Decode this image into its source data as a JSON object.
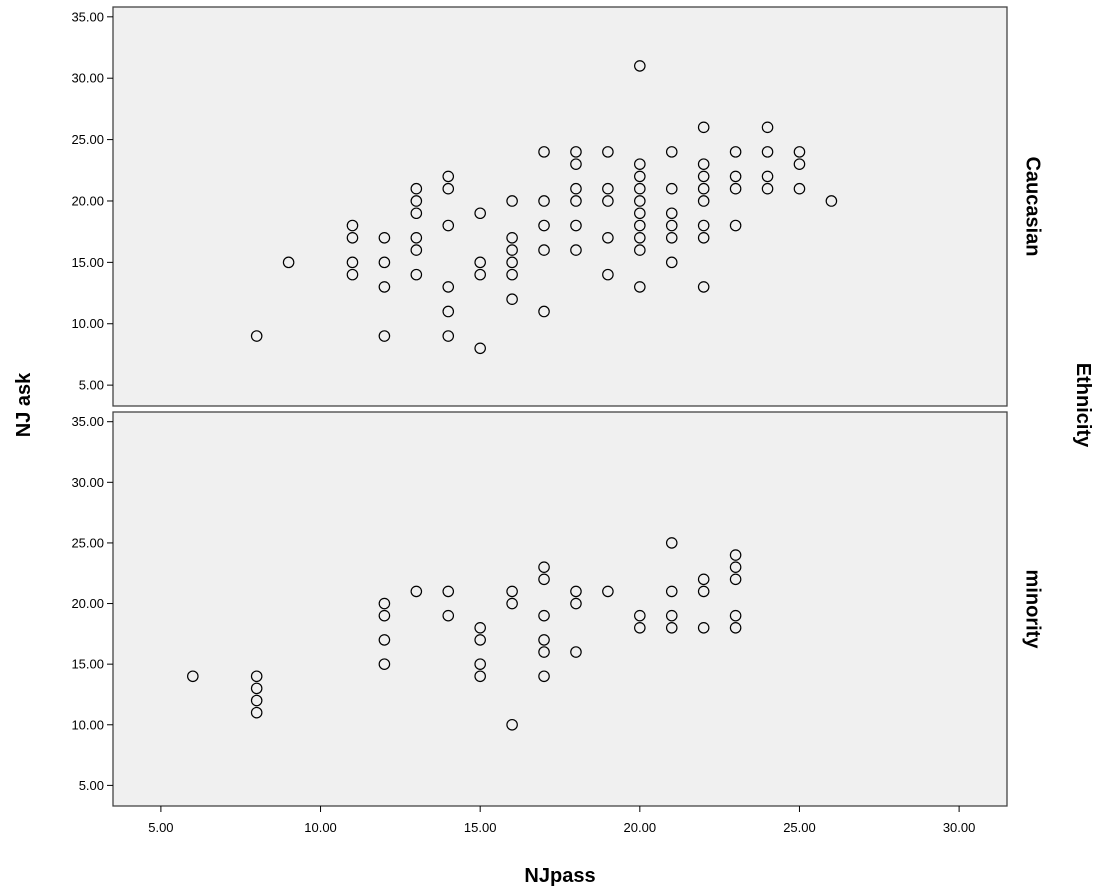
{
  "chart_data": {
    "type": "scatter",
    "xlabel": "NJpass",
    "ylabel": "NJ ask",
    "facet_label": "Ethnicity",
    "xlim": [
      3.5,
      31.5
    ],
    "ylim": [
      3.3,
      35.8
    ],
    "x_ticks": [
      "5.00",
      "10.00",
      "15.00",
      "20.00",
      "25.00",
      "30.00"
    ],
    "y_ticks": [
      "5.00",
      "10.00",
      "15.00",
      "20.00",
      "25.00",
      "30.00",
      "35.00"
    ],
    "grid": false,
    "marker": "hollow-circle",
    "panels": [
      {
        "name": "Caucasian",
        "points": [
          [
            8,
            9
          ],
          [
            9,
            15
          ],
          [
            11,
            14
          ],
          [
            11,
            15
          ],
          [
            11,
            17
          ],
          [
            11,
            18
          ],
          [
            12,
            9
          ],
          [
            12,
            13
          ],
          [
            12,
            15
          ],
          [
            12,
            17
          ],
          [
            13,
            14
          ],
          [
            13,
            16
          ],
          [
            13,
            17
          ],
          [
            13,
            19
          ],
          [
            13,
            20
          ],
          [
            13,
            21
          ],
          [
            14,
            9
          ],
          [
            14,
            11
          ],
          [
            14,
            13
          ],
          [
            14,
            18
          ],
          [
            14,
            21
          ],
          [
            14,
            22
          ],
          [
            15,
            8
          ],
          [
            15,
            14
          ],
          [
            15,
            15
          ],
          [
            15,
            19
          ],
          [
            16,
            12
          ],
          [
            16,
            14
          ],
          [
            16,
            15
          ],
          [
            16,
            16
          ],
          [
            16,
            17
          ],
          [
            16,
            20
          ],
          [
            17,
            11
          ],
          [
            17,
            16
          ],
          [
            17,
            18
          ],
          [
            17,
            20
          ],
          [
            17,
            24
          ],
          [
            18,
            16
          ],
          [
            18,
            18
          ],
          [
            18,
            20
          ],
          [
            18,
            21
          ],
          [
            18,
            23
          ],
          [
            18,
            24
          ],
          [
            19,
            14
          ],
          [
            19,
            17
          ],
          [
            19,
            20
          ],
          [
            19,
            21
          ],
          [
            19,
            24
          ],
          [
            20,
            13
          ],
          [
            20,
            16
          ],
          [
            20,
            17
          ],
          [
            20,
            18
          ],
          [
            20,
            19
          ],
          [
            20,
            20
          ],
          [
            20,
            21
          ],
          [
            20,
            22
          ],
          [
            20,
            23
          ],
          [
            20,
            31
          ],
          [
            21,
            15
          ],
          [
            21,
            17
          ],
          [
            21,
            18
          ],
          [
            21,
            19
          ],
          [
            21,
            21
          ],
          [
            21,
            24
          ],
          [
            22,
            13
          ],
          [
            22,
            17
          ],
          [
            22,
            18
          ],
          [
            22,
            20
          ],
          [
            22,
            21
          ],
          [
            22,
            22
          ],
          [
            22,
            23
          ],
          [
            22,
            26
          ],
          [
            23,
            18
          ],
          [
            23,
            21
          ],
          [
            23,
            22
          ],
          [
            23,
            24
          ],
          [
            24,
            21
          ],
          [
            24,
            22
          ],
          [
            24,
            24
          ],
          [
            24,
            26
          ],
          [
            25,
            21
          ],
          [
            25,
            23
          ],
          [
            25,
            24
          ],
          [
            26,
            20
          ]
        ]
      },
      {
        "name": "minority",
        "points": [
          [
            6,
            14
          ],
          [
            8,
            11
          ],
          [
            8,
            12
          ],
          [
            8,
            13
          ],
          [
            8,
            14
          ],
          [
            12,
            15
          ],
          [
            12,
            17
          ],
          [
            12,
            19
          ],
          [
            12,
            20
          ],
          [
            13,
            21
          ],
          [
            14,
            19
          ],
          [
            14,
            21
          ],
          [
            15,
            14
          ],
          [
            15,
            15
          ],
          [
            15,
            17
          ],
          [
            15,
            18
          ],
          [
            16,
            10
          ],
          [
            16,
            20
          ],
          [
            16,
            21
          ],
          [
            17,
            14
          ],
          [
            17,
            16
          ],
          [
            17,
            17
          ],
          [
            17,
            19
          ],
          [
            17,
            22
          ],
          [
            17,
            23
          ],
          [
            18,
            16
          ],
          [
            18,
            20
          ],
          [
            18,
            21
          ],
          [
            19,
            21
          ],
          [
            20,
            18
          ],
          [
            20,
            19
          ],
          [
            21,
            18
          ],
          [
            21,
            19
          ],
          [
            21,
            21
          ],
          [
            21,
            25
          ],
          [
            22,
            18
          ],
          [
            22,
            21
          ],
          [
            22,
            22
          ],
          [
            23,
            18
          ],
          [
            23,
            19
          ],
          [
            23,
            22
          ],
          [
            23,
            23
          ],
          [
            23,
            24
          ]
        ]
      }
    ]
  }
}
